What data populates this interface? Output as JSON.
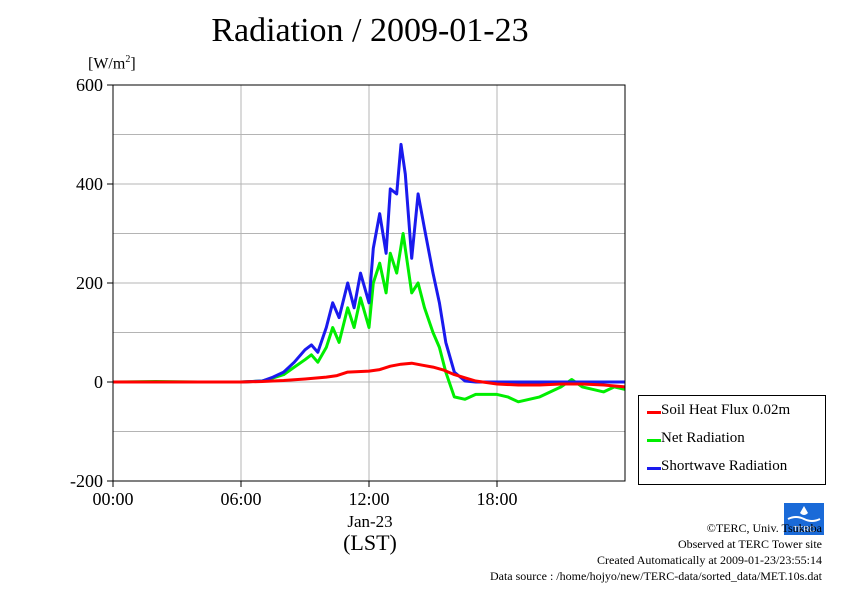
{
  "title": "Radiation / 2009-01-23",
  "unit": {
    "base": "[W/m",
    "sup": "2",
    "close": "]"
  },
  "x_date_label": "Jan-23",
  "x_axis_label": "(LST)",
  "credits": [
    "©TERC, Univ. Tsukuba",
    "Observed at TERC Tower site",
    "Created Automatically at 2009-01-23/23:55:14",
    "Data source : /home/hojyo/new/TERC-data/sorted_data/MET.10s.dat"
  ],
  "logo_text": "TERC",
  "colors": {
    "soil": "#ff0000",
    "net": "#00ee00",
    "shortwave": "#1a1aee",
    "grid": "#b4b4b4"
  },
  "chart_data": {
    "type": "line",
    "x_unit": "hour of day (LST)",
    "xlim": [
      0,
      24
    ],
    "ylim": [
      -200,
      600
    ],
    "y_ticks": [
      "-200",
      "0",
      "200",
      "400",
      "600"
    ],
    "x_ticks": [
      "00:00",
      "06:00",
      "12:00",
      "18:00"
    ],
    "y_grid": [
      -100,
      0,
      100,
      200,
      300,
      400,
      500
    ],
    "x_grid": [
      6,
      12,
      18
    ],
    "legend_position": "bottom-right, outside plot",
    "series": [
      {
        "name": "Soil Heat Flux 0.02m",
        "color": "#ff0000",
        "x": [
          0,
          2,
          4,
          6,
          7,
          8,
          9,
          10,
          10.5,
          11,
          11.5,
          12,
          12.5,
          13,
          13.5,
          14,
          14.5,
          15,
          15.5,
          16,
          17,
          18,
          19,
          20,
          21,
          22,
          23,
          24
        ],
        "y": [
          0,
          0,
          0,
          0,
          1,
          3,
          6,
          10,
          13,
          20,
          21,
          22,
          25,
          32,
          36,
          38,
          34,
          30,
          24,
          15,
          2,
          -4,
          -6,
          -6,
          -4,
          -4,
          -6,
          -10
        ]
      },
      {
        "name": "Net Radiation",
        "color": "#00ee00",
        "x": [
          0,
          2,
          4,
          6,
          7,
          7.5,
          8,
          8.5,
          9,
          9.3,
          9.6,
          10,
          10.3,
          10.6,
          11,
          11.3,
          11.6,
          12,
          12.2,
          12.5,
          12.8,
          13.0,
          13.3,
          13.6,
          13.8,
          14.0,
          14.3,
          14.6,
          15.0,
          15.3,
          15.6,
          16.0,
          16.5,
          17,
          18,
          18.5,
          19,
          20,
          21,
          21.5,
          22,
          22.5,
          23,
          23.5,
          24
        ],
        "y": [
          0,
          1,
          0,
          0,
          2,
          8,
          15,
          30,
          45,
          55,
          40,
          70,
          110,
          80,
          150,
          110,
          170,
          110,
          200,
          240,
          180,
          260,
          220,
          300,
          240,
          180,
          200,
          150,
          100,
          70,
          20,
          -30,
          -35,
          -25,
          -25,
          -30,
          -40,
          -30,
          -10,
          5,
          -10,
          -15,
          -20,
          -10,
          -15
        ]
      },
      {
        "name": "Shortwave Radiation",
        "color": "#1a1aee",
        "x": [
          0,
          2,
          4,
          6,
          7,
          7.5,
          8,
          8.5,
          9,
          9.3,
          9.6,
          10,
          10.3,
          10.6,
          11,
          11.3,
          11.6,
          12,
          12.2,
          12.5,
          12.8,
          13.0,
          13.3,
          13.5,
          13.7,
          14.0,
          14.3,
          14.6,
          15.0,
          15.3,
          15.6,
          16.0,
          16.5,
          17,
          18,
          19,
          20,
          21,
          22,
          23,
          24
        ],
        "y": [
          0,
          0,
          0,
          0,
          2,
          10,
          20,
          40,
          65,
          75,
          60,
          110,
          160,
          130,
          200,
          150,
          220,
          160,
          270,
          340,
          260,
          390,
          380,
          480,
          420,
          250,
          380,
          310,
          220,
          160,
          80,
          20,
          2,
          0,
          0,
          0,
          0,
          0,
          0,
          0,
          0
        ]
      }
    ]
  }
}
